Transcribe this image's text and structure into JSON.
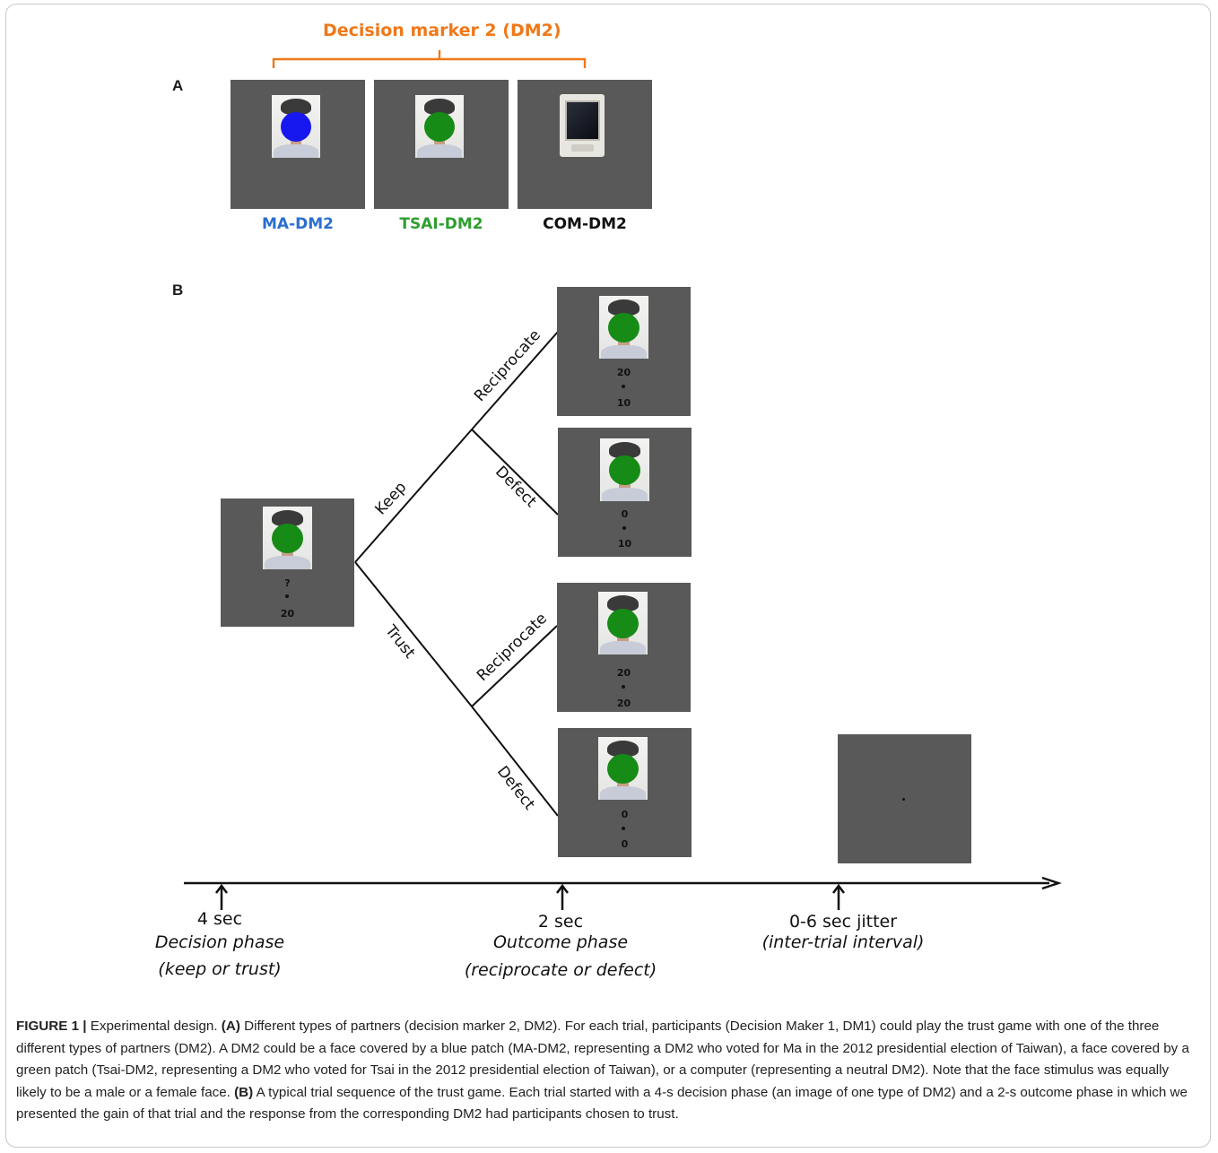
{
  "panel_a": {
    "letter": "A",
    "title": "Decision marker 2 (DM2)",
    "tiles": [
      {
        "label": "MA-DM2",
        "patch_color": "#1717f0",
        "icon": "face-with-blue-patch"
      },
      {
        "label": "TSAI-DM2",
        "patch_color": "#168b16",
        "icon": "face-with-green-patch"
      },
      {
        "label": "COM-DM2",
        "icon": "computer-monitor"
      }
    ]
  },
  "panel_b": {
    "letter": "B",
    "decision_screen": {
      "top": "?",
      "bottom": "20"
    },
    "branches": {
      "keep": "Keep",
      "trust": "Trust",
      "keep_reciprocate": "Reciprocate",
      "keep_defect": "Defect",
      "trust_reciprocate": "Reciprocate",
      "trust_defect": "Defect"
    },
    "outcome_screens": [
      {
        "top": "20",
        "bottom": "10"
      },
      {
        "top": "0",
        "bottom": "10"
      },
      {
        "top": "20",
        "bottom": "20"
      },
      {
        "top": "0",
        "bottom": "0"
      }
    ],
    "timeline": [
      {
        "duration": "4 sec",
        "phase": "Decision phase",
        "detail": "(keep or trust)"
      },
      {
        "duration": "2 sec",
        "phase": "Outcome phase",
        "detail": "(reciprocate or defect)"
      },
      {
        "duration": "0-6 sec jitter",
        "phase": "(inter-trial interval)"
      }
    ]
  },
  "caption": {
    "label": "FIGURE 1 |",
    "text1": " Experimental design. ",
    "a_label": "(A)",
    "text2": " Different types of partners (decision marker 2, DM2). For each trial, participants (Decision Maker 1, DM1) could play the trust game with one of the three different types of partners (DM2). A DM2 could be a face covered by a blue patch (MA-DM2, representing a DM2 who voted for Ma in the 2012 presidential election of Taiwan), a face covered by a green patch (Tsai-DM2, representing a DM2 who voted for Tsai in the 2012 presidential election of Taiwan), or a computer (representing a neutral DM2). Note that the face stimulus was equally likely to be a male or a female face. ",
    "b_label": "(B)",
    "text3": " A typical trial sequence of the trust game. Each trial started with a 4-s decision phase (an image of one type of DM2) and a 2-s outcome phase in which we presented the gain of that trial and the response from the corresponding DM2 had participants chosen to trust."
  }
}
